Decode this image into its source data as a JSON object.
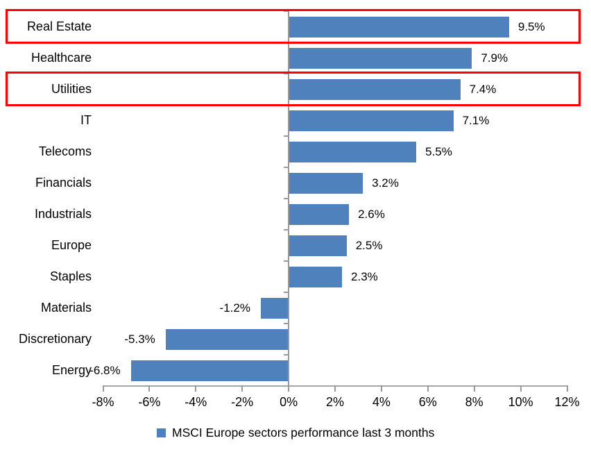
{
  "chart_data": {
    "type": "bar",
    "orientation": "horizontal",
    "categories": [
      "Real Estate",
      "Healthcare",
      "Utilities",
      "IT",
      "Telecoms",
      "Financials",
      "Industrials",
      "Europe",
      "Staples",
      "Materials",
      "Discretionary",
      "Energy"
    ],
    "values": [
      9.5,
      7.9,
      7.4,
      7.1,
      5.5,
      3.2,
      2.6,
      2.5,
      2.3,
      -1.2,
      -5.3,
      -6.8
    ],
    "data_labels": [
      "9.5%",
      "7.9%",
      "7.4%",
      "7.1%",
      "5.5%",
      "3.2%",
      "2.6%",
      "2.5%",
      "2.3%",
      "-1.2%",
      "-5.3%",
      "-6.8%"
    ],
    "x_ticks": [
      -8,
      -6,
      -4,
      -2,
      0,
      2,
      4,
      6,
      8,
      10,
      12
    ],
    "x_tick_labels": [
      "-8%",
      "-6%",
      "-4%",
      "-2%",
      "0%",
      "2%",
      "4%",
      "6%",
      "8%",
      "10%",
      "12%"
    ],
    "xlim": [
      -8,
      12
    ],
    "grid": "off",
    "legend": "MSCI Europe sectors performance last 3 months",
    "legend_position": "bottom",
    "bar_color": "#4F81BD",
    "axis_color": "#A6A6A6",
    "tick_color": "#999999",
    "text_color": "#000000",
    "highlight_color": "#FF0000",
    "highlighted_categories": [
      "Real Estate",
      "Utilities"
    ]
  }
}
